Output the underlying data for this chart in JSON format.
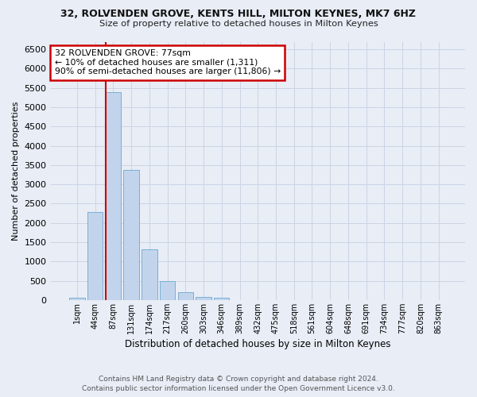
{
  "title1": "32, ROLVENDEN GROVE, KENTS HILL, MILTON KEYNES, MK7 6HZ",
  "title2": "Size of property relative to detached houses in Milton Keynes",
  "xlabel": "Distribution of detached houses by size in Milton Keynes",
  "ylabel": "Number of detached properties",
  "bar_labels": [
    "1sqm",
    "44sqm",
    "87sqm",
    "131sqm",
    "174sqm",
    "217sqm",
    "260sqm",
    "303sqm",
    "346sqm",
    "389sqm",
    "432sqm",
    "475sqm",
    "518sqm",
    "561sqm",
    "604sqm",
    "648sqm",
    "691sqm",
    "734sqm",
    "777sqm",
    "820sqm",
    "863sqm"
  ],
  "bar_values": [
    60,
    2280,
    5390,
    3380,
    1320,
    480,
    195,
    75,
    60,
    0,
    0,
    0,
    0,
    0,
    0,
    0,
    0,
    0,
    0,
    0,
    0
  ],
  "bar_color": "#c2d4ec",
  "bar_edge_color": "#7aafd4",
  "vline_color": "#cc0000",
  "annotation_text": "32 ROLVENDEN GROVE: 77sqm\n← 10% of detached houses are smaller (1,311)\n90% of semi-detached houses are larger (11,806) →",
  "annotation_box_facecolor": "white",
  "annotation_box_edgecolor": "#cc0000",
  "ylim_max": 6700,
  "yticks": [
    0,
    500,
    1000,
    1500,
    2000,
    2500,
    3000,
    3500,
    4000,
    4500,
    5000,
    5500,
    6000,
    6500
  ],
  "grid_color": "#ccd5e5",
  "bg_color": "#e8edf6",
  "footer1": "Contains HM Land Registry data © Crown copyright and database right 2024.",
  "footer2": "Contains public sector information licensed under the Open Government Licence v3.0."
}
